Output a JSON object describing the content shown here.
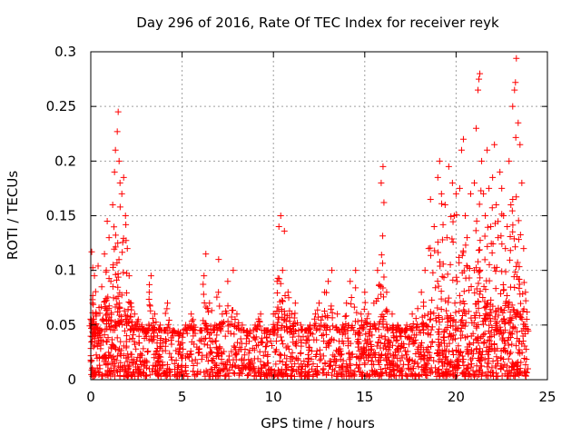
{
  "chart_data": {
    "type": "scatter",
    "title": "Day 296 of 2016, Rate Of TEC Index for receiver reyk",
    "xlabel": "GPS time / hours",
    "ylabel": "ROTI / TECUs",
    "xlim": [
      0,
      25
    ],
    "ylim": [
      0,
      0.3
    ],
    "x_ticks": [
      0,
      5,
      10,
      15,
      20,
      25
    ],
    "y_ticks": [
      0,
      0.05,
      0.1,
      0.15,
      0.2,
      0.25,
      0.3
    ],
    "x_tick_labels": [
      "0",
      "5",
      "10",
      "15",
      "20",
      "25"
    ],
    "y_tick_labels": [
      "0",
      "0.05",
      "0.1",
      "0.15",
      "0.2",
      "0.25",
      "0.3"
    ],
    "grid": true,
    "marker": "+",
    "marker_color": "#ff0000",
    "series": [
      {
        "name": "ROTI",
        "points": [
          [
            0.05,
            0.117
          ],
          [
            0.1,
            0.07
          ],
          [
            0.15,
            0.03
          ],
          [
            0.2,
            0.095
          ],
          [
            0.3,
            0.06
          ],
          [
            0.4,
            0.104
          ],
          [
            0.5,
            0.04
          ],
          [
            0.6,
            0.085
          ],
          [
            0.75,
            0.115
          ],
          [
            0.85,
            0.1
          ],
          [
            0.9,
            0.145
          ],
          [
            1.0,
            0.13
          ],
          [
            1.1,
            0.09
          ],
          [
            1.2,
            0.16
          ],
          [
            1.3,
            0.19
          ],
          [
            1.35,
            0.21
          ],
          [
            1.45,
            0.227
          ],
          [
            1.5,
            0.245
          ],
          [
            1.55,
            0.2
          ],
          [
            1.6,
            0.18
          ],
          [
            1.7,
            0.17
          ],
          [
            1.8,
            0.185
          ],
          [
            1.9,
            0.15
          ],
          [
            2.0,
            0.12
          ],
          [
            2.1,
            0.095
          ],
          [
            2.2,
            0.07
          ],
          [
            2.4,
            0.06
          ],
          [
            2.6,
            0.055
          ],
          [
            2.8,
            0.05
          ],
          [
            3.0,
            0.045
          ],
          [
            3.2,
            0.08
          ],
          [
            3.3,
            0.095
          ],
          [
            3.5,
            0.06
          ],
          [
            3.8,
            0.05
          ],
          [
            4.0,
            0.045
          ],
          [
            4.2,
            0.07
          ],
          [
            4.5,
            0.04
          ],
          [
            4.8,
            0.035
          ],
          [
            5.2,
            0.05
          ],
          [
            5.5,
            0.06
          ],
          [
            5.6,
            0.055
          ],
          [
            6.0,
            0.045
          ],
          [
            6.2,
            0.095
          ],
          [
            6.3,
            0.115
          ],
          [
            6.5,
            0.07
          ],
          [
            6.8,
            0.05
          ],
          [
            7.0,
            0.11
          ],
          [
            7.2,
            0.06
          ],
          [
            7.5,
            0.09
          ],
          [
            7.8,
            0.1
          ],
          [
            8.0,
            0.06
          ],
          [
            8.3,
            0.05
          ],
          [
            8.6,
            0.04
          ],
          [
            9.0,
            0.05
          ],
          [
            9.3,
            0.06
          ],
          [
            9.6,
            0.045
          ],
          [
            10.0,
            0.06
          ],
          [
            10.2,
            0.09
          ],
          [
            10.3,
            0.14
          ],
          [
            10.4,
            0.15
          ],
          [
            10.5,
            0.1
          ],
          [
            10.6,
            0.136
          ],
          [
            10.8,
            0.08
          ],
          [
            11.0,
            0.06
          ],
          [
            11.2,
            0.07
          ],
          [
            11.5,
            0.05
          ],
          [
            11.8,
            0.045
          ],
          [
            12.0,
            0.05
          ],
          [
            12.3,
            0.06
          ],
          [
            12.5,
            0.07
          ],
          [
            12.8,
            0.08
          ],
          [
            13.0,
            0.09
          ],
          [
            13.2,
            0.1
          ],
          [
            13.5,
            0.06
          ],
          [
            13.8,
            0.05
          ],
          [
            14.0,
            0.07
          ],
          [
            14.2,
            0.09
          ],
          [
            14.5,
            0.1
          ],
          [
            14.8,
            0.06
          ],
          [
            15.0,
            0.08
          ],
          [
            15.2,
            0.06
          ],
          [
            15.5,
            0.07
          ],
          [
            15.7,
            0.1
          ],
          [
            15.9,
            0.18
          ],
          [
            16.0,
            0.195
          ],
          [
            16.05,
            0.162
          ],
          [
            16.2,
            0.08
          ],
          [
            16.5,
            0.06
          ],
          [
            16.8,
            0.05
          ],
          [
            17.0,
            0.045
          ],
          [
            17.3,
            0.05
          ],
          [
            17.6,
            0.06
          ],
          [
            17.9,
            0.065
          ],
          [
            18.1,
            0.08
          ],
          [
            18.3,
            0.1
          ],
          [
            18.5,
            0.12
          ],
          [
            18.6,
            0.165
          ],
          [
            18.8,
            0.14
          ],
          [
            19.0,
            0.185
          ],
          [
            19.1,
            0.2
          ],
          [
            19.2,
            0.17
          ],
          [
            19.4,
            0.16
          ],
          [
            19.5,
            0.13
          ],
          [
            19.6,
            0.195
          ],
          [
            19.8,
            0.18
          ],
          [
            19.9,
            0.15
          ],
          [
            20.0,
            0.17
          ],
          [
            20.2,
            0.175
          ],
          [
            20.3,
            0.21
          ],
          [
            20.4,
            0.22
          ],
          [
            20.5,
            0.15
          ],
          [
            20.6,
            0.13
          ],
          [
            20.8,
            0.17
          ],
          [
            21.0,
            0.18
          ],
          [
            21.1,
            0.23
          ],
          [
            21.2,
            0.265
          ],
          [
            21.25,
            0.275
          ],
          [
            21.3,
            0.28
          ],
          [
            21.4,
            0.2
          ],
          [
            21.5,
            0.17
          ],
          [
            21.6,
            0.15
          ],
          [
            21.7,
            0.21
          ],
          [
            21.8,
            0.175
          ],
          [
            21.9,
            0.14
          ],
          [
            22.0,
            0.185
          ],
          [
            22.1,
            0.215
          ],
          [
            22.2,
            0.16
          ],
          [
            22.3,
            0.13
          ],
          [
            22.4,
            0.19
          ],
          [
            22.5,
            0.175
          ],
          [
            22.6,
            0.15
          ],
          [
            22.7,
            0.12
          ],
          [
            22.8,
            0.14
          ],
          [
            22.9,
            0.2
          ],
          [
            23.0,
            0.16
          ],
          [
            23.1,
            0.25
          ],
          [
            23.2,
            0.265
          ],
          [
            23.25,
            0.272
          ],
          [
            23.3,
            0.294
          ],
          [
            23.4,
            0.235
          ],
          [
            23.5,
            0.215
          ],
          [
            23.6,
            0.18
          ],
          [
            23.7,
            0.12
          ],
          [
            23.8,
            0.08
          ]
        ]
      }
    ],
    "background_band": {
      "note": "dense red band of points near the baseline across the whole day",
      "x_range": [
        0,
        23.95
      ],
      "y_range": [
        0.003,
        0.045
      ]
    }
  }
}
